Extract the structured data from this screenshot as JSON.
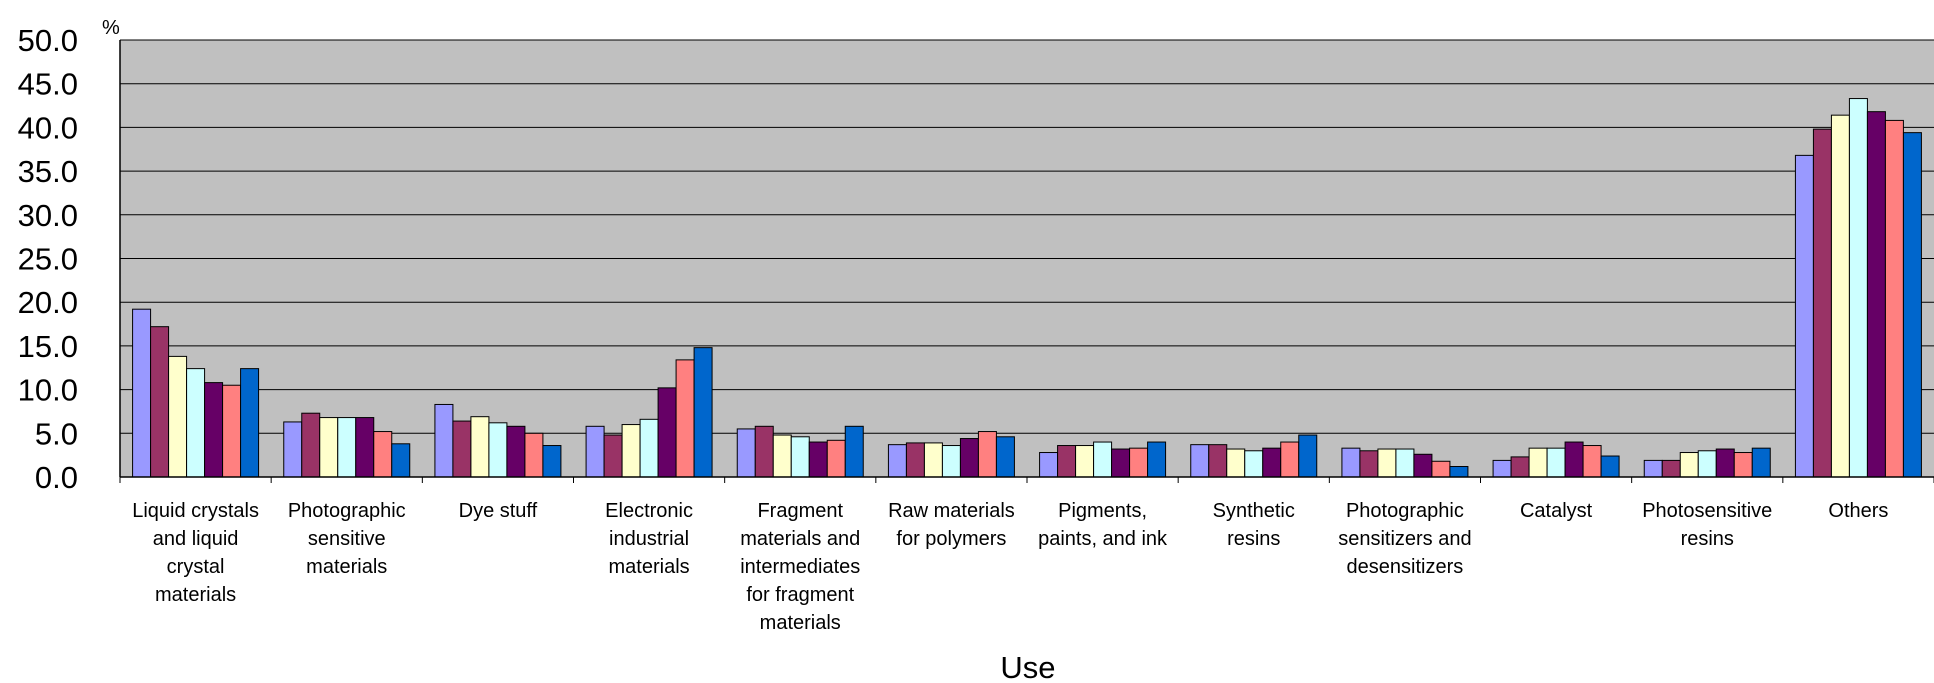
{
  "chart_data": {
    "type": "bar",
    "title": "",
    "xlabel": "Use",
    "ylabel": "%",
    "ylim": [
      0,
      50
    ],
    "yticks": [
      "0.0",
      "5.0",
      "10.0",
      "15.0",
      "20.0",
      "25.0",
      "30.0",
      "35.0",
      "40.0",
      "45.0",
      "50.0"
    ],
    "grid": true,
    "legend": "none",
    "plot_background": "#c0c0c0",
    "categories": [
      [
        "Liquid crystals",
        "and liquid",
        "crystal",
        "materials"
      ],
      [
        "Photographic",
        "sensitive",
        "materials"
      ],
      [
        "Dye stuff"
      ],
      [
        "Electronic",
        "industrial",
        "materials"
      ],
      [
        "Fragment",
        "materials and",
        "intermediates",
        "for fragment",
        "materials"
      ],
      [
        "Raw materials",
        "for polymers"
      ],
      [
        "Pigments,",
        "paints, and ink"
      ],
      [
        "Synthetic",
        "resins"
      ],
      [
        "Photographic",
        "sensitizers and",
        "desensitizers"
      ],
      [
        "Catalyst"
      ],
      [
        "Photosensitive",
        "resins"
      ],
      [
        "Others"
      ]
    ],
    "series": [
      {
        "color": "#9999ff",
        "values": [
          19.2,
          6.3,
          8.3,
          5.8,
          5.5,
          3.7,
          2.8,
          3.7,
          3.3,
          1.9,
          1.9,
          36.8
        ]
      },
      {
        "color": "#993366",
        "values": [
          17.2,
          7.3,
          6.4,
          4.8,
          5.8,
          3.9,
          3.6,
          3.7,
          3.0,
          2.3,
          1.9,
          39.8
        ]
      },
      {
        "color": "#ffffcc",
        "values": [
          13.8,
          6.8,
          6.9,
          6.0,
          4.8,
          3.9,
          3.6,
          3.2,
          3.2,
          3.3,
          2.8,
          41.4
        ]
      },
      {
        "color": "#ccffff",
        "values": [
          12.4,
          6.8,
          6.2,
          6.6,
          4.6,
          3.6,
          4.0,
          3.0,
          3.2,
          3.3,
          3.0,
          43.3
        ]
      },
      {
        "color": "#660066",
        "values": [
          10.8,
          6.8,
          5.8,
          10.2,
          4.0,
          4.4,
          3.2,
          3.3,
          2.6,
          4.0,
          3.2,
          41.8
        ]
      },
      {
        "color": "#ff8080",
        "values": [
          10.5,
          5.2,
          5.0,
          13.4,
          4.2,
          5.2,
          3.3,
          4.0,
          1.8,
          3.6,
          2.8,
          40.8
        ]
      },
      {
        "color": "#0066cc",
        "values": [
          12.4,
          3.8,
          3.6,
          14.8,
          5.8,
          4.6,
          4.0,
          4.8,
          1.2,
          2.4,
          3.3,
          39.4
        ]
      }
    ]
  }
}
